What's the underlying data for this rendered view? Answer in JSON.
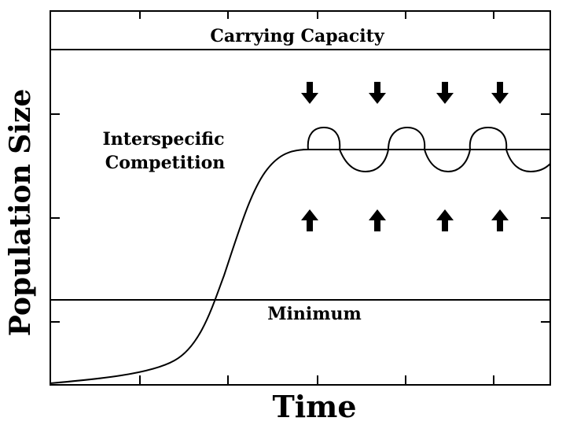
{
  "axes": {
    "y_label": "Population Size",
    "x_label": "Time"
  },
  "labels": {
    "carrying_capacity": "Carrying Capacity",
    "competition": [
      "Interspecific",
      "Competition"
    ],
    "minimum": "Minimum"
  }
}
